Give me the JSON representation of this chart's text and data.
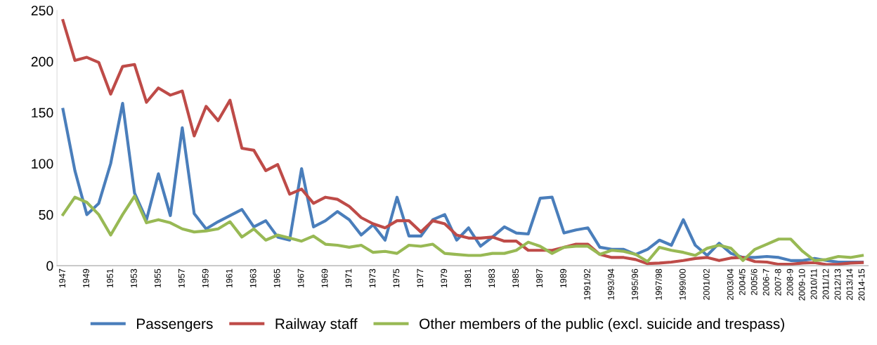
{
  "chart_data": {
    "type": "line",
    "categories": [
      "1947",
      null,
      "1949",
      null,
      "1951",
      null,
      "1953",
      null,
      "1955",
      null,
      "1957",
      null,
      "1959",
      null,
      "1961",
      null,
      "1963",
      null,
      "1965",
      null,
      "1967",
      null,
      "1969",
      null,
      "1971",
      null,
      "1973",
      null,
      "1975",
      null,
      "1977",
      null,
      "1979",
      null,
      "1981",
      null,
      "1983",
      null,
      "1985",
      null,
      "1987",
      null,
      "1989",
      null,
      "1991/92",
      null,
      "1993/94",
      null,
      "1995/96",
      null,
      "1997/98",
      null,
      "1999/00",
      null,
      "2001/02",
      null,
      "2003/04",
      "2004/5",
      "2005/6",
      "2006-7",
      "2007-8",
      "2008-9",
      "2009-10",
      "2010/11",
      "2011/12",
      "2012/13",
      "2013/14",
      "2014-15"
    ],
    "series": [
      {
        "name": "Passengers",
        "color": "#4a7ebb",
        "values": [
          153,
          93,
          50,
          61,
          100,
          159,
          71,
          45,
          90,
          49,
          135,
          51,
          36,
          43,
          49,
          55,
          38,
          44,
          28,
          25,
          95,
          38,
          44,
          53,
          45,
          30,
          40,
          25,
          67,
          29,
          29,
          45,
          50,
          25,
          37,
          19,
          28,
          38,
          32,
          31,
          66,
          67,
          32,
          35,
          37,
          18,
          16,
          16,
          11,
          16,
          25,
          20,
          45,
          20,
          10,
          22,
          12,
          8,
          8,
          9,
          8,
          5,
          5,
          7,
          5,
          3.5,
          3.5,
          3.5
        ]
      },
      {
        "name": "Railway staff",
        "color": "#be4b48",
        "values": [
          240,
          201,
          204,
          199,
          168,
          195,
          197,
          160,
          174,
          167,
          171,
          127,
          156,
          142,
          162,
          115,
          113,
          93,
          99,
          70,
          75,
          61,
          67,
          65,
          58,
          47,
          41,
          37,
          44,
          44,
          33,
          44,
          41,
          30,
          27,
          27,
          28,
          24,
          24,
          15,
          15,
          15,
          18,
          21,
          21,
          11,
          8,
          8,
          6,
          2,
          2.5,
          3.5,
          5,
          7,
          8,
          5,
          7.5,
          8,
          4,
          3.5,
          1.3,
          1.3,
          2.5,
          3,
          1,
          1.3,
          2.5,
          3
        ]
      },
      {
        "name": "Other members of the public (excl. suicide and trespass)",
        "color": "#98b954",
        "values": [
          50,
          67,
          62,
          50,
          30,
          50,
          68,
          42,
          45,
          42,
          36,
          33,
          34,
          36,
          43,
          28,
          36,
          25,
          30,
          27,
          24,
          29,
          21,
          20,
          18,
          20,
          13,
          14,
          12,
          20,
          19,
          21,
          12,
          11,
          10,
          10,
          12,
          12,
          15,
          23,
          19,
          12,
          18,
          19,
          19,
          11,
          15,
          14,
          11,
          4,
          18,
          15,
          13,
          10,
          17,
          20,
          17,
          5,
          16,
          21,
          26,
          26,
          14,
          5,
          6,
          9,
          8,
          10
        ]
      }
    ],
    "ylim": [
      0,
      250
    ],
    "yticks": [
      0,
      50,
      100,
      150,
      200,
      250
    ],
    "grid": false,
    "legend": "bottom",
    "marker": "none",
    "line_style": "solid"
  }
}
